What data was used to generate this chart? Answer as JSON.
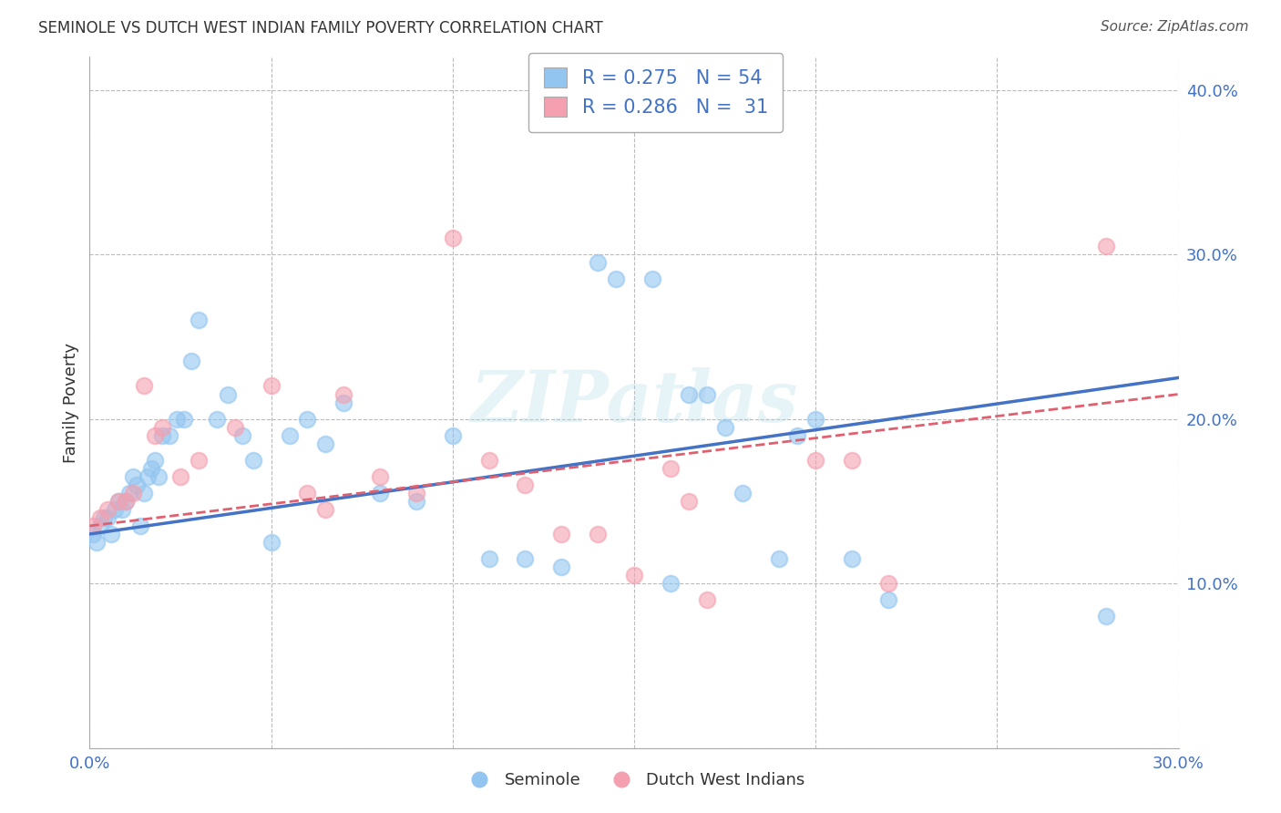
{
  "title": "SEMINOLE VS DUTCH WEST INDIAN FAMILY POVERTY CORRELATION CHART",
  "source": "Source: ZipAtlas.com",
  "ylabel": "Family Poverty",
  "xlim": [
    0.0,
    0.3
  ],
  "ylim": [
    0.0,
    0.42
  ],
  "xticks": [
    0.0,
    0.05,
    0.1,
    0.15,
    0.2,
    0.25,
    0.3
  ],
  "xtick_labels": [
    "0.0%",
    "",
    "",
    "",
    "",
    "",
    "30.0%"
  ],
  "yticks": [
    0.0,
    0.1,
    0.2,
    0.3,
    0.4
  ],
  "ytick_labels": [
    "",
    "10.0%",
    "20.0%",
    "30.0%",
    "40.0%"
  ],
  "seminole_color": "#92C5F0",
  "dutch_color": "#F4A0B0",
  "seminole_line_color": "#4472C4",
  "dutch_line_color": "#E06070",
  "seminole_R": 0.275,
  "seminole_N": 54,
  "dutch_R": 0.286,
  "dutch_N": 31,
  "legend_color": "#4472C4",
  "watermark": "ZIPatlas",
  "seminole_x": [
    0.001,
    0.002,
    0.003,
    0.004,
    0.005,
    0.006,
    0.007,
    0.008,
    0.009,
    0.01,
    0.011,
    0.012,
    0.013,
    0.014,
    0.015,
    0.016,
    0.017,
    0.018,
    0.019,
    0.02,
    0.022,
    0.024,
    0.026,
    0.028,
    0.03,
    0.035,
    0.038,
    0.042,
    0.045,
    0.05,
    0.055,
    0.06,
    0.065,
    0.07,
    0.08,
    0.09,
    0.1,
    0.11,
    0.12,
    0.13,
    0.14,
    0.145,
    0.155,
    0.16,
    0.165,
    0.17,
    0.175,
    0.18,
    0.19,
    0.195,
    0.2,
    0.21,
    0.22,
    0.28
  ],
  "seminole_y": [
    0.13,
    0.125,
    0.135,
    0.14,
    0.14,
    0.13,
    0.145,
    0.15,
    0.145,
    0.15,
    0.155,
    0.165,
    0.16,
    0.135,
    0.155,
    0.165,
    0.17,
    0.175,
    0.165,
    0.19,
    0.19,
    0.2,
    0.2,
    0.235,
    0.26,
    0.2,
    0.215,
    0.19,
    0.175,
    0.125,
    0.19,
    0.2,
    0.185,
    0.21,
    0.155,
    0.15,
    0.19,
    0.115,
    0.115,
    0.11,
    0.295,
    0.285,
    0.285,
    0.1,
    0.215,
    0.215,
    0.195,
    0.155,
    0.115,
    0.19,
    0.2,
    0.115,
    0.09,
    0.08
  ],
  "dutch_x": [
    0.001,
    0.003,
    0.005,
    0.008,
    0.01,
    0.012,
    0.015,
    0.018,
    0.02,
    0.025,
    0.03,
    0.04,
    0.05,
    0.06,
    0.065,
    0.07,
    0.08,
    0.09,
    0.1,
    0.11,
    0.12,
    0.13,
    0.14,
    0.15,
    0.16,
    0.165,
    0.17,
    0.2,
    0.21,
    0.22,
    0.28
  ],
  "dutch_y": [
    0.135,
    0.14,
    0.145,
    0.15,
    0.15,
    0.155,
    0.22,
    0.19,
    0.195,
    0.165,
    0.175,
    0.195,
    0.22,
    0.155,
    0.145,
    0.215,
    0.165,
    0.155,
    0.31,
    0.175,
    0.16,
    0.13,
    0.13,
    0.105,
    0.17,
    0.15,
    0.09,
    0.175,
    0.175,
    0.1,
    0.305
  ]
}
